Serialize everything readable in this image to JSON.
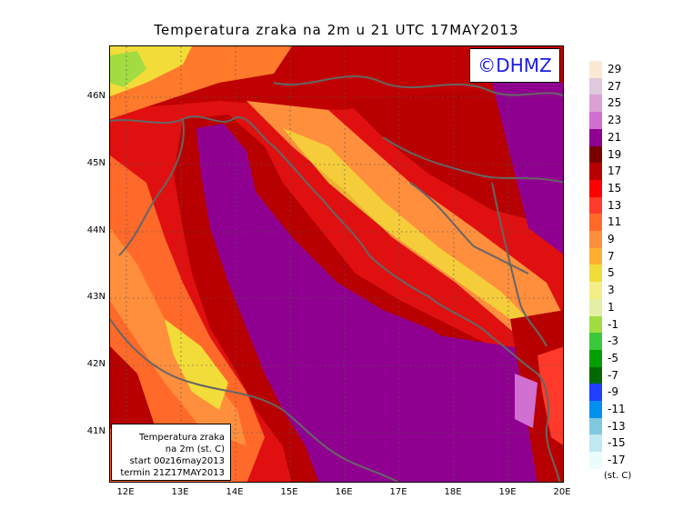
{
  "title": "Temperatura zraka na 2m u 21 UTC 17MAY2013",
  "watermark": "©DHMZ",
  "info_box": {
    "line1": "Temperatura zraka",
    "line2": "na 2m (st. C)",
    "line3": "start 00z16may2013",
    "line4": "termin 21Z17MAY2013"
  },
  "lat_labels": [
    "46N",
    "45N",
    "44N",
    "43N",
    "42N",
    "41N"
  ],
  "lon_labels": [
    "12E",
    "13E",
    "14E",
    "15E",
    "16E",
    "17E",
    "18E",
    "19E",
    "20E"
  ],
  "legend": {
    "unit": "(st. C)",
    "labels": [
      "29",
      "27",
      "25",
      "23",
      "21",
      "19",
      "17",
      "15",
      "13",
      "11",
      "9",
      "7",
      "5",
      "3",
      "1",
      "-1",
      "-3",
      "-5",
      "-7",
      "-9",
      "-11",
      "-13",
      "-15",
      "-17"
    ],
    "colors": [
      "#fbe9d4",
      "#e0c8dd",
      "#dca0d4",
      "#d070d0",
      "#900090",
      "#7a0000",
      "#b80000",
      "#ff0000",
      "#ff3a2a",
      "#ff6a2a",
      "#ff8f3c",
      "#ffb030",
      "#f2dc3a",
      "#f4ee86",
      "#e2f0a6",
      "#a2dc40",
      "#3cc83c",
      "#00a000",
      "#006a00",
      "#2040ff",
      "#0090f0",
      "#80c8e0",
      "#c0e8f0",
      "#eafcfc"
    ]
  }
}
